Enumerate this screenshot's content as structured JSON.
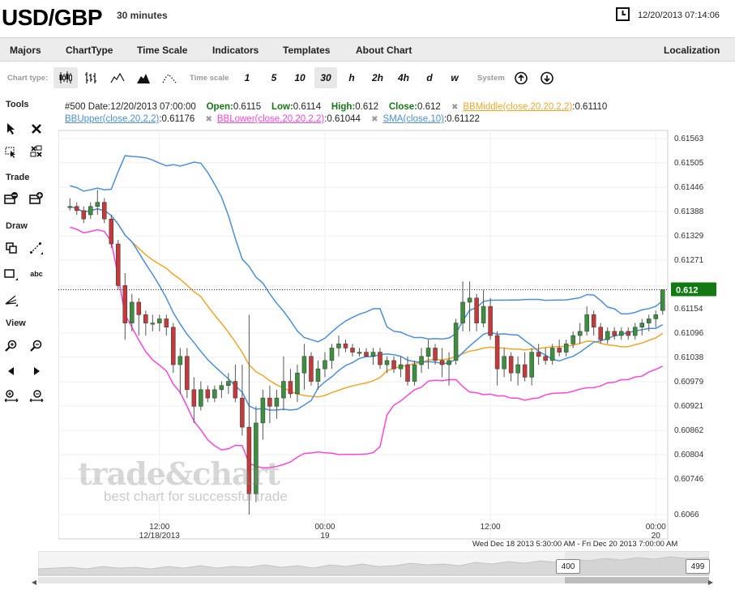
{
  "header": {
    "pair": "USD/GBP",
    "interval": "30 minutes",
    "datetime": "12/20/2013 07:14:06"
  },
  "menu": {
    "items": [
      "Majors",
      "ChartType",
      "Time Scale",
      "Indicators",
      "Templates",
      "About Chart"
    ],
    "right": "Localization"
  },
  "toolbar": {
    "chart_type_label": "Chart type:",
    "time_scale_label": "Time scale",
    "time_scale_options": [
      "1",
      "5",
      "10",
      "30",
      "h",
      "2h",
      "4h",
      "d",
      "w"
    ],
    "active_time_scale": "30",
    "system_label": "System"
  },
  "tools": {
    "sections": [
      "Tools",
      "Trade",
      "Draw",
      "View"
    ],
    "text_tool": "abc"
  },
  "legend": {
    "bar": "#500",
    "date_label": "Date:",
    "date": "12/20/2013 07:00:00",
    "open_label": "Open:",
    "open": "0.6115",
    "low_label": "Low:",
    "low": "0.6114",
    "high_label": "High:",
    "high": "0.612",
    "close_label": "Close:",
    "close": "0.612",
    "bbmiddle_name": "BBMiddle(close,20,20,2,2)",
    "bbmiddle_value": ":0.61110",
    "bbupper_name": "BBUpper(close,20,2,2)",
    "bbupper_value": ":0.61176",
    "bblower_name": "BBLower(close,20,20,2,2)",
    "bblower_value": ":0.61044",
    "sma_name": "SMA(close,10)",
    "sma_value": ":0.61122"
  },
  "colors": {
    "bbupper": "#4a90e0",
    "bbmiddle": "#f5a623",
    "bblower": "#ff44dd",
    "sma": "#4a90e0",
    "candle_up": "#3c8f3c",
    "candle_down": "#c43a3a",
    "price_label": "#137a13"
  },
  "watermark": {
    "title": "trade&chart",
    "subtitle": "best chart for successful trade"
  },
  "range_text": "Wed Dec 18 2013 5:30:00 AM - Fri Dec 20 2013 7:00:00 AM",
  "navigator": {
    "left_value": "400",
    "right_value": "499"
  },
  "chart_data": {
    "type": "candlestick",
    "title": "",
    "ylim": [
      0.6066,
      0.61563
    ],
    "y_ticks": [
      "0.61563",
      "0.61505",
      "0.61446",
      "0.61388",
      "0.61329",
      "0.61271",
      "0.6121",
      "0.61154",
      "0.61096",
      "0.61038",
      "0.60979",
      "0.60921",
      "0.60862",
      "0.60804",
      "0.60746",
      "0.6066"
    ],
    "current_price": "0.612",
    "x_ticks": [
      {
        "time": "12:00",
        "date": "12/18/2013",
        "index": 13
      },
      {
        "time": "00:00",
        "date": "19",
        "index": 37
      },
      {
        "time": "12:00",
        "date": "",
        "index": 61
      },
      {
        "time": "00:00",
        "date": "20",
        "index": 85
      }
    ],
    "candles": [
      [
        0.614,
        0.6142,
        0.6139,
        0.614
      ],
      [
        0.614,
        0.6141,
        0.6138,
        0.6139
      ],
      [
        0.6139,
        0.614,
        0.6136,
        0.6137
      ],
      [
        0.6138,
        0.6141,
        0.6137,
        0.614
      ],
      [
        0.614,
        0.6144,
        0.6138,
        0.6141
      ],
      [
        0.6141,
        0.6142,
        0.6136,
        0.6137
      ],
      [
        0.6137,
        0.6138,
        0.613,
        0.6131
      ],
      [
        0.6131,
        0.6132,
        0.612,
        0.6121
      ],
      [
        0.6121,
        0.6124,
        0.6108,
        0.6112
      ],
      [
        0.6112,
        0.6119,
        0.611,
        0.6117
      ],
      [
        0.6117,
        0.6118,
        0.6109,
        0.6114
      ],
      [
        0.6114,
        0.6115,
        0.6109,
        0.6112
      ],
      [
        0.6112,
        0.6114,
        0.611,
        0.6112
      ],
      [
        0.6112,
        0.6114,
        0.611,
        0.6113
      ],
      [
        0.6113,
        0.6114,
        0.6109,
        0.6111
      ],
      [
        0.6111,
        0.6112,
        0.61,
        0.6102
      ],
      [
        0.6102,
        0.6106,
        0.6095,
        0.6104
      ],
      [
        0.6104,
        0.6106,
        0.6094,
        0.6096
      ],
      [
        0.6096,
        0.6099,
        0.6088,
        0.6092
      ],
      [
        0.6092,
        0.6098,
        0.6091,
        0.6096
      ],
      [
        0.6096,
        0.6097,
        0.6093,
        0.6094
      ],
      [
        0.6094,
        0.6097,
        0.6093,
        0.6096
      ],
      [
        0.6096,
        0.6098,
        0.6094,
        0.6097
      ],
      [
        0.6097,
        0.61,
        0.6095,
        0.6098
      ],
      [
        0.6098,
        0.6102,
        0.6093,
        0.6094
      ],
      [
        0.6094,
        0.6102,
        0.6085,
        0.6087
      ],
      [
        0.6087,
        0.6114,
        0.6066,
        0.6071
      ],
      [
        0.6071,
        0.6092,
        0.6069,
        0.6088
      ],
      [
        0.6088,
        0.6096,
        0.6084,
        0.6094
      ],
      [
        0.6094,
        0.6097,
        0.6088,
        0.6092
      ],
      [
        0.6092,
        0.6096,
        0.6089,
        0.6094
      ],
      [
        0.6094,
        0.6104,
        0.6091,
        0.6098
      ],
      [
        0.6098,
        0.6101,
        0.6094,
        0.6095
      ],
      [
        0.6095,
        0.6102,
        0.6093,
        0.61
      ],
      [
        0.61,
        0.6107,
        0.6096,
        0.6104
      ],
      [
        0.6104,
        0.6105,
        0.6097,
        0.6098
      ],
      [
        0.6098,
        0.6103,
        0.6096,
        0.6101
      ],
      [
        0.6101,
        0.6105,
        0.6099,
        0.6103
      ],
      [
        0.6103,
        0.6107,
        0.6101,
        0.6106
      ],
      [
        0.6106,
        0.6109,
        0.6104,
        0.6107
      ],
      [
        0.6107,
        0.6108,
        0.6105,
        0.6106
      ],
      [
        0.6106,
        0.6107,
        0.6104,
        0.6105
      ],
      [
        0.6105,
        0.6106,
        0.6104,
        0.6105
      ],
      [
        0.6105,
        0.6106,
        0.6104,
        0.6104
      ],
      [
        0.6104,
        0.6106,
        0.6102,
        0.6105
      ],
      [
        0.6105,
        0.6106,
        0.6101,
        0.6102
      ],
      [
        0.6102,
        0.6104,
        0.61,
        0.6103
      ],
      [
        0.6103,
        0.6104,
        0.61,
        0.6101
      ],
      [
        0.6101,
        0.6104,
        0.6099,
        0.6102
      ],
      [
        0.6102,
        0.6104,
        0.6097,
        0.6098
      ],
      [
        0.6098,
        0.6103,
        0.6097,
        0.6102
      ],
      [
        0.6102,
        0.6106,
        0.61,
        0.6104
      ],
      [
        0.6104,
        0.6108,
        0.6101,
        0.6106
      ],
      [
        0.6106,
        0.6107,
        0.6102,
        0.6103
      ],
      [
        0.6103,
        0.6106,
        0.6099,
        0.6102
      ],
      [
        0.6102,
        0.6105,
        0.6097,
        0.6103
      ],
      [
        0.6103,
        0.6113,
        0.6102,
        0.6112
      ],
      [
        0.6112,
        0.6122,
        0.611,
        0.6117
      ],
      [
        0.6117,
        0.6122,
        0.611,
        0.6118
      ],
      [
        0.6118,
        0.6119,
        0.611,
        0.6112
      ],
      [
        0.6112,
        0.612,
        0.6111,
        0.6116
      ],
      [
        0.6116,
        0.6118,
        0.6108,
        0.6109
      ],
      [
        0.6109,
        0.611,
        0.6097,
        0.6101
      ],
      [
        0.6101,
        0.6106,
        0.6099,
        0.6104
      ],
      [
        0.6104,
        0.6105,
        0.6098,
        0.61
      ],
      [
        0.61,
        0.6104,
        0.6097,
        0.6102
      ],
      [
        0.6102,
        0.6105,
        0.6098,
        0.6099
      ],
      [
        0.6099,
        0.6106,
        0.6097,
        0.6105
      ],
      [
        0.6105,
        0.6107,
        0.6102,
        0.6104
      ],
      [
        0.6104,
        0.6106,
        0.6102,
        0.6103
      ],
      [
        0.6103,
        0.6107,
        0.6102,
        0.6106
      ],
      [
        0.6106,
        0.6108,
        0.6104,
        0.6105
      ],
      [
        0.6105,
        0.6108,
        0.6104,
        0.6107
      ],
      [
        0.6107,
        0.611,
        0.6106,
        0.6109
      ],
      [
        0.6109,
        0.6112,
        0.6107,
        0.611
      ],
      [
        0.611,
        0.6116,
        0.6109,
        0.6114
      ],
      [
        0.6114,
        0.6115,
        0.6109,
        0.6111
      ],
      [
        0.6111,
        0.6112,
        0.6107,
        0.6108
      ],
      [
        0.6108,
        0.6111,
        0.6107,
        0.611
      ],
      [
        0.611,
        0.6111,
        0.6108,
        0.6109
      ],
      [
        0.6109,
        0.6111,
        0.6108,
        0.611
      ],
      [
        0.611,
        0.6111,
        0.6108,
        0.6109
      ],
      [
        0.6109,
        0.6112,
        0.6108,
        0.6111
      ],
      [
        0.6111,
        0.6113,
        0.6109,
        0.6112
      ],
      [
        0.6112,
        0.6114,
        0.611,
        0.6113
      ],
      [
        0.6113,
        0.6115,
        0.6111,
        0.6114
      ],
      [
        0.6115,
        0.612,
        0.6114,
        0.612
      ]
    ]
  }
}
